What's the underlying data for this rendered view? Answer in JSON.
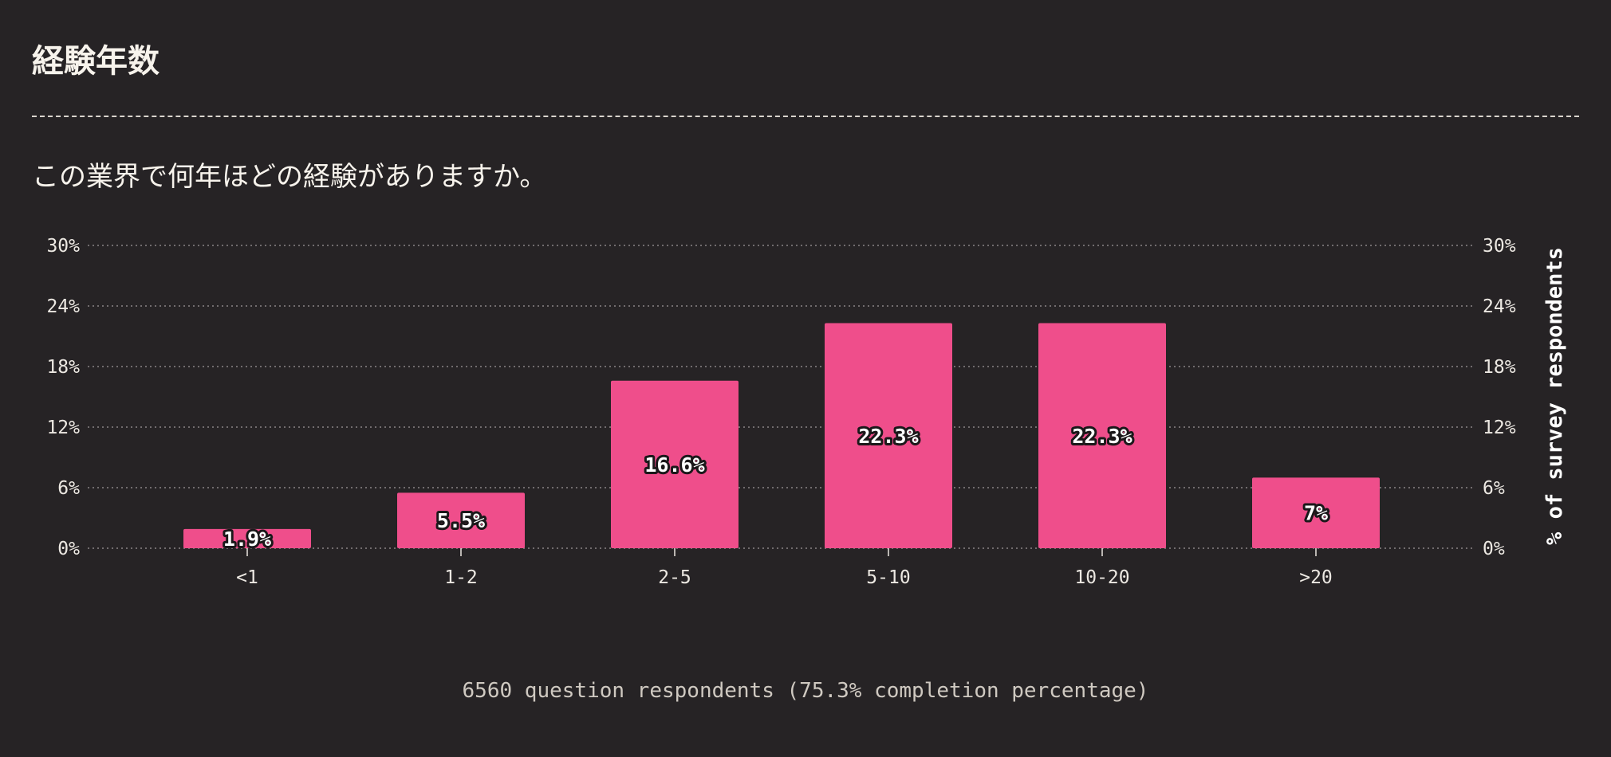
{
  "title": "経験年数",
  "question": "この業界で何年ほどの経験がありますか。",
  "footer": "6560 question respondents (75.3% completion percentage)",
  "colors": {
    "bar": "#ef4e8b",
    "background": "#262325",
    "grid": "#8a8487"
  },
  "chart_data": {
    "type": "bar",
    "categories": [
      "<1",
      "1-2",
      "2-5",
      "5-10",
      "10-20",
      ">20"
    ],
    "values": [
      1.9,
      5.5,
      16.6,
      22.3,
      22.3,
      7
    ],
    "value_labels": [
      "1.9%",
      "5.5%",
      "16.6%",
      "22.3%",
      "22.3%",
      "7%"
    ],
    "title": "",
    "xlabel": "",
    "ylabel": "% of survey respondents",
    "ylim": [
      0,
      30
    ],
    "yticks": [
      0,
      6,
      12,
      18,
      24,
      30
    ],
    "ytick_labels": [
      "0%",
      "6%",
      "12%",
      "18%",
      "24%",
      "30%"
    ],
    "grid": true,
    "legend": "none"
  }
}
